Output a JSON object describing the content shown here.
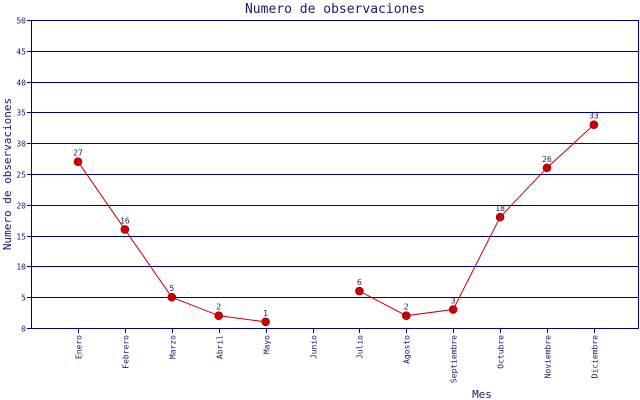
{
  "chart_data": {
    "type": "line",
    "title": "Numero de observaciones",
    "xlabel": "Mes",
    "ylabel": "Numero de observaciones",
    "ylim": [
      0,
      50
    ],
    "yticks": [
      "0",
      "5",
      "10",
      "15",
      "20",
      "25",
      "30",
      "35",
      "40",
      "45",
      "50"
    ],
    "grid": true,
    "categories": [
      "Enero",
      "Febrero",
      "Marzo",
      "Abril",
      "Mayo",
      "Junio",
      "Julio",
      "Agosto",
      "Septiembre",
      "Octubre",
      "Noviembre",
      "Diciembre"
    ],
    "series": [
      {
        "values": [
          27,
          16,
          5,
          2,
          1,
          null,
          6,
          2,
          3,
          18,
          26,
          33
        ]
      }
    ],
    "colors": {
      "line": "#cc0000",
      "marker": "#cc0000",
      "grid": "#000080",
      "text": "#1a1a6e"
    }
  }
}
